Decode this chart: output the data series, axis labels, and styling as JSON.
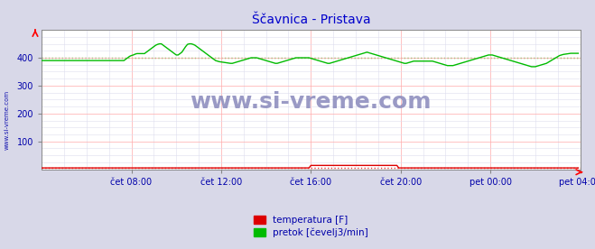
{
  "title": "Ščavnica - Pristava",
  "title_color": "#0000cc",
  "title_fontsize": 10,
  "bg_color": "#d8d8e8",
  "plot_bg_color": "#ffffff",
  "x_label_color": "#0000aa",
  "y_label_color": "#0000aa",
  "grid_color_major": "#ffaaaa",
  "grid_color_minor": "#ddddee",
  "watermark": "www.si-vreme.com",
  "xlabel_ticks": [
    "čet 08:00",
    "čet 12:00",
    "čet 16:00",
    "čet 20:00",
    "pet 00:00",
    "pet 04:00"
  ],
  "yticks": [
    100,
    200,
    300,
    400
  ],
  "ylim": [
    0,
    500
  ],
  "xlim": [
    0,
    288
  ],
  "n_points": 288,
  "legend_labels": [
    "temperatura [F]",
    "pretok [čevelj3/min]"
  ],
  "legend_colors": [
    "#dd0000",
    "#00bb00"
  ],
  "temp_baseline": 5,
  "flow_dotted_val": 400,
  "sidebar_text": "www.si-vreme.com",
  "sidebar_color": "#0000aa",
  "flow_data": [
    390,
    390,
    390,
    390,
    390,
    390,
    390,
    390,
    390,
    390,
    390,
    390,
    390,
    390,
    390,
    390,
    390,
    390,
    390,
    390,
    390,
    390,
    390,
    390,
    390,
    390,
    390,
    390,
    390,
    390,
    390,
    390,
    390,
    390,
    390,
    390,
    390,
    390,
    390,
    390,
    390,
    390,
    390,
    390,
    390,
    395,
    400,
    405,
    408,
    410,
    413,
    415,
    415,
    415,
    415,
    415,
    420,
    425,
    430,
    435,
    440,
    445,
    448,
    450,
    450,
    445,
    440,
    435,
    430,
    425,
    420,
    415,
    410,
    410,
    415,
    420,
    430,
    440,
    448,
    450,
    450,
    448,
    445,
    440,
    435,
    430,
    425,
    420,
    415,
    410,
    405,
    400,
    395,
    390,
    388,
    386,
    385,
    384,
    383,
    382,
    381,
    380,
    380,
    382,
    384,
    386,
    388,
    390,
    392,
    394,
    396,
    398,
    400,
    400,
    400,
    400,
    398,
    396,
    394,
    392,
    390,
    388,
    386,
    384,
    382,
    380,
    380,
    382,
    384,
    386,
    388,
    390,
    392,
    394,
    396,
    398,
    400,
    400,
    400,
    400,
    400,
    400,
    400,
    400,
    398,
    396,
    394,
    392,
    390,
    388,
    386,
    384,
    382,
    380,
    380,
    382,
    384,
    386,
    388,
    390,
    392,
    394,
    396,
    398,
    400,
    402,
    404,
    406,
    408,
    410,
    412,
    414,
    416,
    418,
    420,
    418,
    416,
    414,
    412,
    410,
    408,
    406,
    404,
    402,
    400,
    398,
    396,
    394,
    392,
    390,
    388,
    386,
    384,
    382,
    380,
    380,
    382,
    384,
    386,
    388,
    388,
    388,
    388,
    388,
    388,
    388,
    388,
    388,
    388,
    388,
    386,
    384,
    382,
    380,
    378,
    376,
    374,
    372,
    372,
    372,
    372,
    374,
    376,
    378,
    380,
    382,
    384,
    386,
    388,
    390,
    392,
    394,
    396,
    398,
    400,
    402,
    404,
    406,
    408,
    410,
    410,
    410,
    408,
    406,
    404,
    402,
    400,
    398,
    396,
    394,
    392,
    390,
    388,
    386,
    384,
    382,
    380,
    378,
    376,
    374,
    372,
    370,
    368,
    368,
    368,
    370,
    372,
    374,
    376,
    378,
    380,
    384,
    388,
    392,
    396,
    400,
    404,
    408,
    410,
    412,
    413,
    414,
    415,
    416,
    416,
    416,
    416,
    416
  ],
  "temp_data": [
    5,
    5,
    5,
    5,
    5,
    5,
    5,
    5,
    5,
    5,
    5,
    5,
    5,
    5,
    5,
    5,
    5,
    5,
    5,
    5,
    5,
    5,
    5,
    5,
    5,
    5,
    5,
    5,
    5,
    5,
    5,
    5,
    5,
    5,
    5,
    5,
    5,
    5,
    5,
    5,
    5,
    5,
    5,
    5,
    5,
    5,
    5,
    5,
    5,
    5,
    5,
    5,
    5,
    5,
    5,
    5,
    5,
    5,
    5,
    5,
    5,
    5,
    5,
    5,
    5,
    5,
    5,
    5,
    5,
    5,
    5,
    5,
    5,
    5,
    5,
    5,
    5,
    5,
    5,
    5,
    5,
    5,
    5,
    5,
    5,
    5,
    5,
    5,
    5,
    5,
    5,
    5,
    5,
    5,
    5,
    5,
    5,
    5,
    5,
    5,
    5,
    5,
    5,
    5,
    5,
    5,
    5,
    5,
    5,
    5,
    5,
    5,
    5,
    5,
    5,
    5,
    5,
    5,
    5,
    5,
    5,
    5,
    5,
    5,
    5,
    5,
    5,
    5,
    5,
    5,
    5,
    5,
    5,
    5,
    5,
    5,
    5,
    5,
    5,
    5,
    5,
    5,
    5,
    5,
    14,
    14,
    14,
    14,
    14,
    14,
    14,
    14,
    14,
    14,
    14,
    14,
    14,
    14,
    14,
    14,
    14,
    14,
    14,
    14,
    14,
    14,
    14,
    14,
    14,
    14,
    14,
    14,
    14,
    14,
    14,
    14,
    14,
    14,
    14,
    14,
    14,
    14,
    14,
    14,
    14,
    14,
    14,
    14,
    14,
    14,
    14,
    5,
    5,
    5,
    5,
    5,
    5,
    5,
    5,
    5,
    5,
    5,
    5,
    5,
    5,
    5,
    5,
    5,
    5,
    5,
    5,
    5,
    5,
    5,
    5,
    5,
    5,
    5,
    5,
    5,
    5,
    5,
    5,
    5,
    5,
    5,
    5,
    5,
    5,
    5,
    5,
    5,
    5,
    5,
    5,
    5,
    5,
    5,
    5,
    5,
    5,
    5,
    5,
    5,
    5,
    5,
    5,
    5,
    5,
    5,
    5,
    5,
    5,
    5,
    5,
    5,
    5,
    5,
    5,
    5,
    5,
    5,
    5,
    5,
    5,
    5,
    5,
    5,
    5,
    5,
    5,
    5,
    5,
    5,
    5,
    5,
    5,
    5,
    5,
    5,
    5,
    5,
    5,
    5,
    5,
    5,
    5,
    5
  ]
}
